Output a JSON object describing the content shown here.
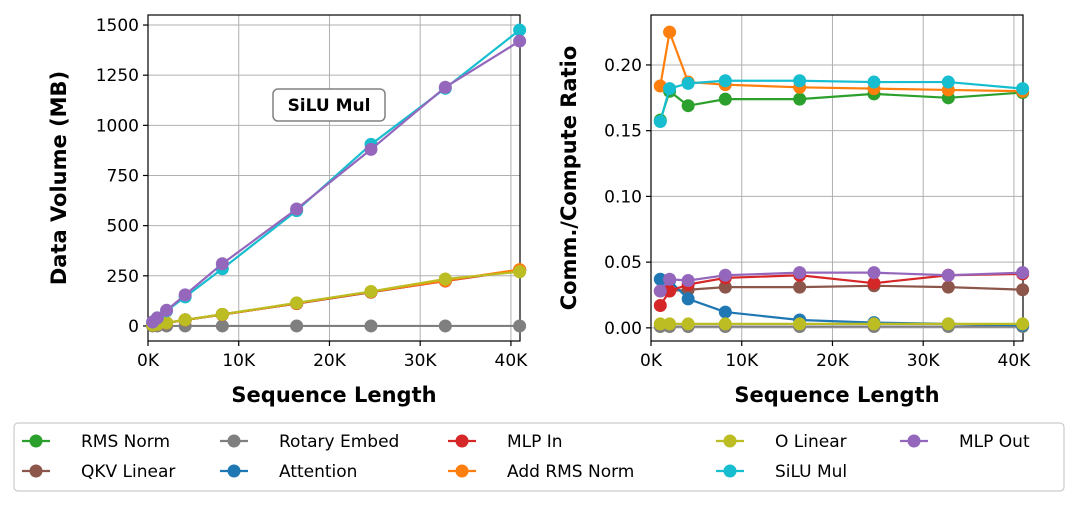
{
  "chart_data": [
    {
      "type": "line",
      "title": "",
      "xlabel": "Sequence Length",
      "ylabel": "Data Volume (MB)",
      "xlim": [
        0,
        41000
      ],
      "ylim": [
        -75,
        1550
      ],
      "xticks": [
        0,
        10000,
        20000,
        30000,
        40000
      ],
      "xtick_labels": [
        "0K",
        "10K",
        "20K",
        "30K",
        "40K"
      ],
      "yticks": [
        0,
        250,
        500,
        750,
        1000,
        1250,
        1500
      ],
      "ytick_labels": [
        "0",
        "250",
        "500",
        "750",
        "1000",
        "1250",
        "1500"
      ],
      "grid": true,
      "annotation": "SiLU Mul",
      "x": [
        512,
        1024,
        2048,
        4096,
        8192,
        16384,
        24576,
        32768,
        40960
      ],
      "series": [
        {
          "name": "RMS Norm",
          "values": [
            4,
            8,
            15,
            30,
            57,
            113,
            170,
            226,
            279
          ]
        },
        {
          "name": "QKV Linear",
          "values": [
            4,
            8,
            15,
            30,
            57,
            112,
            168,
            225,
            278
          ]
        },
        {
          "name": "Rotary Embed",
          "values": [
            0,
            0,
            0,
            0,
            0,
            0,
            0,
            0,
            0
          ]
        },
        {
          "name": "Attention",
          "values": [
            4,
            8,
            15,
            30,
            57,
            112,
            169,
            226,
            279
          ]
        },
        {
          "name": "MLP In",
          "values": [
            4,
            8,
            15,
            30,
            57,
            112,
            169,
            224,
            278
          ]
        },
        {
          "name": "Add RMS Norm",
          "values": [
            4,
            8,
            15,
            30,
            57,
            113,
            170,
            226,
            281
          ]
        },
        {
          "name": "O Linear",
          "values": [
            4,
            8,
            16,
            31,
            58,
            115,
            172,
            234,
            270
          ]
        },
        {
          "name": "SiLU Mul",
          "values": [
            20,
            40,
            75,
            145,
            285,
            575,
            905,
            1185,
            1475
          ]
        },
        {
          "name": "MLP Out",
          "values": [
            20,
            40,
            78,
            155,
            310,
            583,
            880,
            1190,
            1420
          ]
        }
      ]
    },
    {
      "type": "line",
      "title": "",
      "xlabel": "Sequence Length",
      "ylabel": "Comm./Compute Ratio",
      "xlim": [
        0,
        41000
      ],
      "ylim": [
        -0.01,
        0.238
      ],
      "xticks": [
        0,
        10000,
        20000,
        30000,
        40000
      ],
      "xtick_labels": [
        "0K",
        "10K",
        "20K",
        "30K",
        "40K"
      ],
      "yticks": [
        0.0,
        0.05,
        0.1,
        0.15,
        0.2
      ],
      "ytick_labels": [
        "0.00",
        "0.05",
        "0.10",
        "0.15",
        "0.20"
      ],
      "grid": true,
      "x": [
        1024,
        2048,
        4096,
        8192,
        16384,
        24576,
        32768,
        40960
      ],
      "series": [
        {
          "name": "RMS Norm",
          "values": [
            0.158,
            0.18,
            0.169,
            0.174,
            0.174,
            0.178,
            0.175,
            0.179
          ]
        },
        {
          "name": "QKV Linear",
          "values": [
            0.028,
            0.028,
            0.029,
            0.031,
            0.031,
            0.032,
            0.031,
            0.029
          ]
        },
        {
          "name": "Rotary Embed",
          "values": [
            0.001,
            0.001,
            0.001,
            0.001,
            0.001,
            0.001,
            0.001,
            0.001
          ]
        },
        {
          "name": "Attention",
          "values": [
            0.037,
            0.036,
            0.022,
            0.012,
            0.006,
            0.004,
            0.003,
            0.002
          ]
        },
        {
          "name": "MLP In",
          "values": [
            0.017,
            0.028,
            0.033,
            0.038,
            0.04,
            0.034,
            0.04,
            0.041
          ]
        },
        {
          "name": "Add RMS Norm",
          "values": [
            0.184,
            0.225,
            0.187,
            0.185,
            0.183,
            0.182,
            0.181,
            0.18
          ]
        },
        {
          "name": "O Linear",
          "values": [
            0.003,
            0.003,
            0.003,
            0.003,
            0.003,
            0.003,
            0.003,
            0.003
          ]
        },
        {
          "name": "SiLU Mul",
          "values": [
            0.157,
            0.182,
            0.186,
            0.188,
            0.188,
            0.187,
            0.187,
            0.182
          ]
        },
        {
          "name": "MLP Out",
          "values": [
            0.028,
            0.037,
            0.036,
            0.04,
            0.042,
            0.042,
            0.04,
            0.042
          ]
        }
      ]
    }
  ],
  "legend": {
    "placement": "bottom",
    "items": [
      {
        "name": "RMS Norm",
        "color": "#2ca02c"
      },
      {
        "name": "QKV Linear",
        "color": "#8c564b"
      },
      {
        "name": "Rotary Embed",
        "color": "#7f7f7f"
      },
      {
        "name": "Attention",
        "color": "#1f77b4"
      },
      {
        "name": "MLP In",
        "color": "#d62728"
      },
      {
        "name": "Add RMS Norm",
        "color": "#ff7f0e"
      },
      {
        "name": "O Linear",
        "color": "#bcbd22"
      },
      {
        "name": "SiLU Mul",
        "color": "#17becf"
      },
      {
        "name": "MLP Out",
        "color": "#9467bd"
      }
    ]
  }
}
